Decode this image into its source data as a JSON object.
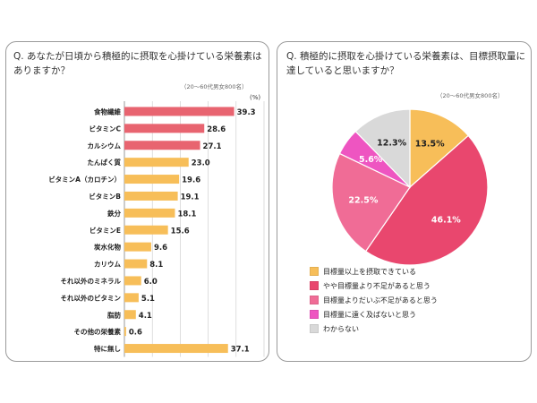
{
  "colors": {
    "bar": "#f7be59",
    "bar_highlight": "#e86470",
    "grid": "#c8c8c8",
    "pie": [
      "#f7be59",
      "#e9476e",
      "#f06c96",
      "#ee55c1",
      "#d9d9d9"
    ]
  },
  "chart_data": [
    {
      "type": "bar",
      "orientation": "horizontal",
      "title": "Q. あなたが日頃から積極的に摂取を心掛けている栄養素はありますか？",
      "note": "（20～60代男女800名）",
      "unit": "(%)",
      "categories": [
        "食物繊維",
        "ビタミンC",
        "カルシウム",
        "たんぱく質",
        "ビタミンA（カロチン）",
        "ビタミンB",
        "鉄分",
        "ビタミンE",
        "炭水化物",
        "カリウム",
        "それ以外のミネラル",
        "それ以外のビタミン",
        "脂肪",
        "その他の栄養素",
        "特に無し"
      ],
      "values": [
        39.3,
        28.6,
        27.1,
        23.0,
        19.6,
        19.1,
        18.1,
        15.6,
        9.6,
        8.1,
        6.0,
        5.1,
        4.1,
        0.6,
        37.1
      ],
      "value_labels": [
        "39.3",
        "28.6",
        "27.1",
        "23.0",
        "19.6",
        "19.1",
        "18.1",
        "15.6",
        "9.6",
        "8.1",
        "6.0",
        "5.1",
        "4.1",
        "0.6",
        "37.1"
      ],
      "highlighted_count": 3,
      "xlim": [
        0,
        50
      ],
      "xticks": [
        "0.0",
        "10.0",
        "20.0",
        "30.0",
        "40.0",
        "50.0"
      ],
      "grid": true
    },
    {
      "type": "pie",
      "title": "Q. 積極的に摂取を心掛けている栄養素は、目標摂取量に達していると思いますか？",
      "note": "（20～60代男女800名）",
      "slices": [
        {
          "label": "目標量以上を摂取できている",
          "value": 13.5,
          "label_text": "13.5%"
        },
        {
          "label": "やや目標量より不足があると思う",
          "value": 46.1,
          "label_text": "46.1%"
        },
        {
          "label": "目標量よりだいぶ不足があると思う",
          "value": 22.5,
          "label_text": "22.5%"
        },
        {
          "label": "目標量に遠く及ばないと思う",
          "value": 5.6,
          "label_text": "5.6%"
        },
        {
          "label": "わからない",
          "value": 12.3,
          "label_text": "12.3%"
        }
      ],
      "legend_position": "bottom-left"
    }
  ]
}
